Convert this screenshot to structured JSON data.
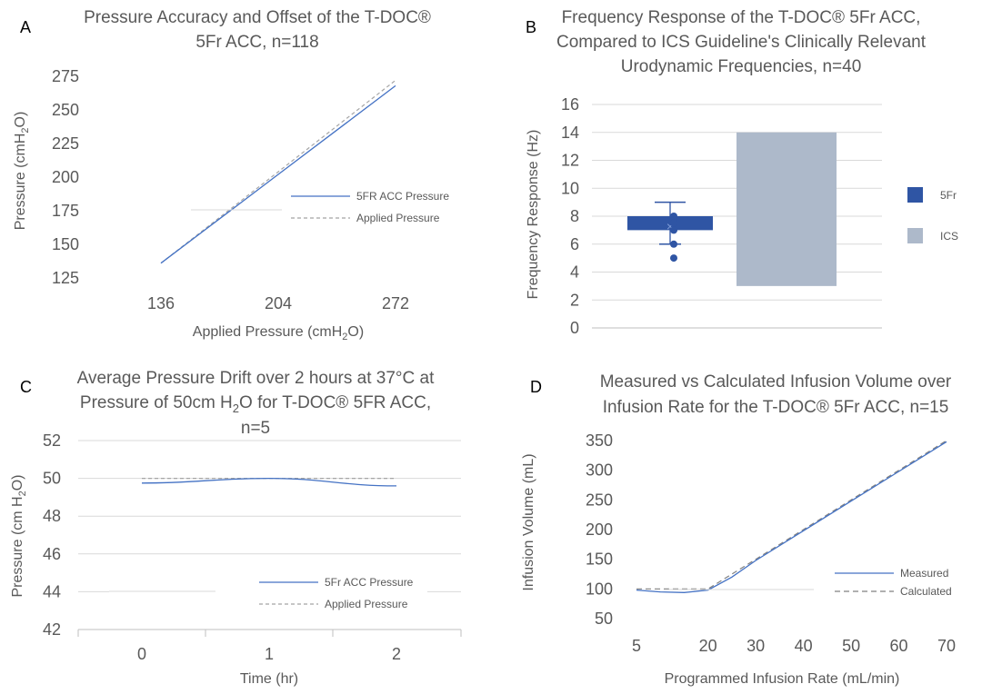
{
  "colors": {
    "blue": "#4472C4",
    "dark_blue": "#2F55A4",
    "gray_bar": "#ADB9CA",
    "dashed": "#A5A5A5",
    "grid": "#D9D9D9",
    "text": "#595959"
  },
  "chart_data": [
    {
      "panel": "A",
      "type": "line",
      "title_lines": [
        "Pressure Accuracy and Offset of the T-DOC®",
        "5Fr ACC, n=118"
      ],
      "xlabel": "Applied Pressure (cmH2O)",
      "ylabel": "Pressure (cmH2O)",
      "x": [
        136,
        204,
        272
      ],
      "x_ticks": [
        "136",
        "204",
        "272"
      ],
      "ylim": [
        125,
        275
      ],
      "y_ticks": [
        "125",
        "150",
        "175",
        "200",
        "225",
        "250",
        "275"
      ],
      "grid": false,
      "series": [
        {
          "name": "5FR ACC Pressure",
          "style": "solid",
          "values": [
            136,
            202,
            268
          ]
        },
        {
          "name": "Applied Pressure",
          "style": "dashed",
          "values": [
            136,
            204,
            272
          ]
        }
      ],
      "legend": "center-right"
    },
    {
      "panel": "B",
      "type": "bar",
      "title_lines": [
        "Frequency Response of the T-DOC® 5Fr ACC,",
        "Compared to ICS Guideline's Clinically Relevant",
        "Urodynamic Frequencies, n=40"
      ],
      "ylabel": "Frequency Response (Hz)",
      "ylim": [
        0,
        16
      ],
      "y_ticks": [
        "0",
        "2",
        "4",
        "6",
        "8",
        "10",
        "12",
        "14",
        "16"
      ],
      "grid": true,
      "series": [
        {
          "name": "5Fr",
          "kind": "box",
          "q1": 7,
          "q3": 8,
          "whisker_low": 6,
          "whisker_high": 9,
          "mean": 7.3,
          "outliers": [
            5,
            6,
            7,
            7.5,
            8
          ]
        },
        {
          "name": "ICS",
          "kind": "range_bar",
          "low": 3,
          "high": 14
        }
      ],
      "legend": "right"
    },
    {
      "panel": "C",
      "type": "line",
      "title_lines": [
        "Average Pressure Drift over 2 hours at 37°C at",
        "Pressure of 50cm H2O for T-DOC® 5FR ACC,",
        "n=5"
      ],
      "xlabel": "Time (hr)",
      "ylabel": "Pressure  (cm H2O)",
      "categories": [
        "0",
        "1",
        "2"
      ],
      "ylim": [
        42,
        52
      ],
      "y_ticks": [
        "42",
        "44",
        "46",
        "48",
        "50",
        "52"
      ],
      "grid": true,
      "series": [
        {
          "name": "5Fr ACC Pressure",
          "style": "solid",
          "values": [
            49.75,
            50.0,
            49.6
          ]
        },
        {
          "name": "Applied Pressure",
          "style": "dashed",
          "values": [
            50,
            50,
            50
          ]
        }
      ],
      "legend": "bottom-right"
    },
    {
      "panel": "D",
      "type": "line",
      "title_lines": [
        "Measured vs Calculated Infusion Volume over",
        "Infusion Rate for the T-DOC® 5Fr ACC, n=15"
      ],
      "xlabel": "Programmed Infusion Rate (mL/min)",
      "ylabel": "Infusion Volume (mL)",
      "x_ticks": [
        "5",
        "20",
        "30",
        "40",
        "50",
        "60",
        "70"
      ],
      "ylim": [
        50,
        350
      ],
      "y_ticks": [
        "50",
        "100",
        "150",
        "200",
        "250",
        "300",
        "350"
      ],
      "grid": false,
      "series": [
        {
          "name": "Measured",
          "style": "solid",
          "x": [
            5,
            10,
            15,
            20,
            25,
            30,
            40,
            50,
            60,
            70
          ],
          "values": [
            98,
            95,
            94,
            98,
            120,
            148,
            198,
            248,
            298,
            348
          ]
        },
        {
          "name": "Calculated",
          "style": "dashed",
          "x": [
            5,
            10,
            15,
            20,
            25,
            30,
            40,
            50,
            60,
            70
          ],
          "values": [
            100,
            100,
            100,
            100,
            125,
            150,
            200,
            250,
            300,
            350
          ]
        }
      ],
      "legend": "bottom-right"
    }
  ]
}
